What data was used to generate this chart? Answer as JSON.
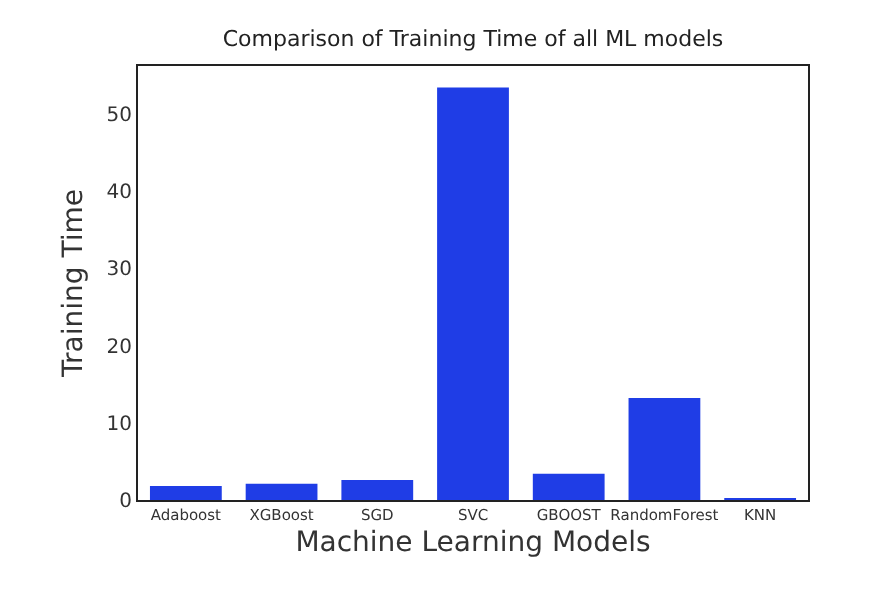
{
  "chart_data": {
    "type": "bar",
    "title": "Comparison of Training Time of all ML models",
    "xlabel": "Machine Learning Models",
    "ylabel": "Training Time",
    "categories": [
      "Adaboost",
      "XGBoost",
      "SGD",
      "SVC",
      "GBOOST",
      "RandomForest",
      "KNN"
    ],
    "values": [
      1.8,
      2.1,
      2.6,
      53.4,
      3.4,
      13.2,
      0.1
    ],
    "color": "#1f3de6",
    "ylim": [
      0,
      56.2
    ],
    "yticks": [
      0,
      10,
      20,
      30,
      40,
      50
    ],
    "grid": false
  }
}
